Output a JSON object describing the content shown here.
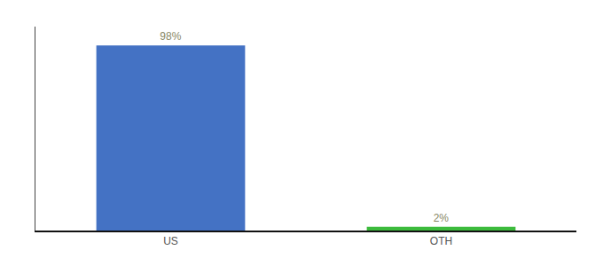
{
  "chart_data": {
    "type": "bar",
    "categories": [
      "US",
      "OTH"
    ],
    "values": [
      98,
      2
    ],
    "value_labels": [
      "98%",
      "2%"
    ],
    "colors": [
      "#4472c4",
      "#3dbb3d"
    ],
    "ylim": [
      0,
      108
    ],
    "data_labels": true,
    "tick_labels": "x",
    "grid": false
  }
}
